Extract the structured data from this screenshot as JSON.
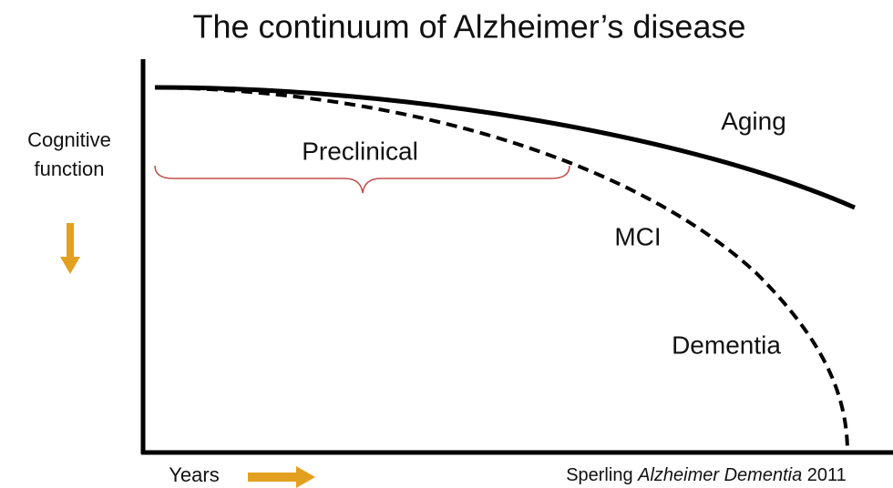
{
  "title": "The continuum of Alzheimer’s disease",
  "y_axis_label": [
    "Cognitive",
    "function"
  ],
  "x_axis_label": "Years",
  "curve_labels": {
    "aging": "Aging",
    "preclinical": "Preclinical",
    "mci": "MCI",
    "dementia": "Dementia"
  },
  "citation": {
    "author": "Sperling",
    "journal": "Alzheimer Dementia",
    "year": "2011"
  }
}
